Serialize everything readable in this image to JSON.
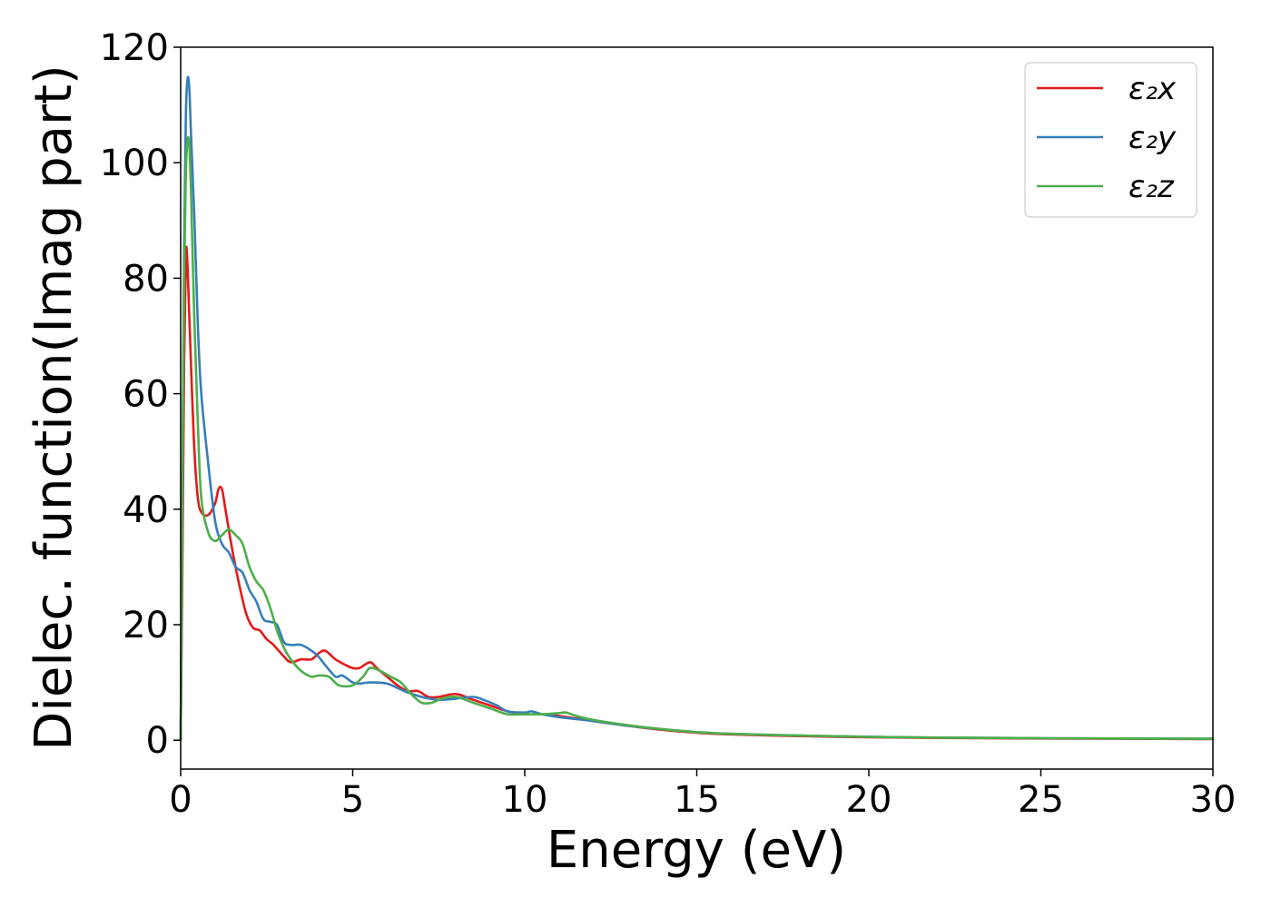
{
  "chart_data": {
    "type": "line",
    "title": "",
    "xlabel": "Energy (eV)",
    "ylabel": "Dielec. function(Imag part)",
    "xlim": [
      0,
      30
    ],
    "ylim": [
      -5,
      120
    ],
    "xticks": [
      0,
      5,
      10,
      15,
      20,
      25,
      30
    ],
    "yticks": [
      0,
      20,
      40,
      60,
      80,
      100,
      120
    ],
    "grid": false,
    "legend_position": "top-right",
    "series": [
      {
        "name": "ε₂x",
        "color": "#e41a1c",
        "points": [
          [
            0,
            0
          ],
          [
            0.05,
            30
          ],
          [
            0.1,
            65
          ],
          [
            0.15,
            84
          ],
          [
            0.2,
            82
          ],
          [
            0.3,
            65
          ],
          [
            0.4,
            50
          ],
          [
            0.5,
            42
          ],
          [
            0.6,
            39.5
          ],
          [
            0.8,
            39
          ],
          [
            1.0,
            41
          ],
          [
            1.1,
            43.5
          ],
          [
            1.2,
            43.5
          ],
          [
            1.3,
            40
          ],
          [
            1.5,
            33
          ],
          [
            1.7,
            27
          ],
          [
            1.9,
            22
          ],
          [
            2.1,
            19.5
          ],
          [
            2.3,
            19
          ],
          [
            2.5,
            17.5
          ],
          [
            2.7,
            16.5
          ],
          [
            3.0,
            14.5
          ],
          [
            3.2,
            13.5
          ],
          [
            3.5,
            14
          ],
          [
            3.8,
            14
          ],
          [
            4.0,
            15
          ],
          [
            4.2,
            15.5
          ],
          [
            4.5,
            14
          ],
          [
            4.8,
            13
          ],
          [
            5.0,
            12.5
          ],
          [
            5.2,
            12.5
          ],
          [
            5.5,
            13.5
          ],
          [
            5.7,
            12.5
          ],
          [
            6.0,
            11
          ],
          [
            6.3,
            9.5
          ],
          [
            6.6,
            8.5
          ],
          [
            6.9,
            8.5
          ],
          [
            7.2,
            7.5
          ],
          [
            7.5,
            7.5
          ],
          [
            8.0,
            8
          ],
          [
            8.5,
            7
          ],
          [
            9.0,
            6
          ],
          [
            9.5,
            5
          ],
          [
            10,
            4.5
          ],
          [
            10.5,
            4.5
          ],
          [
            11,
            4.2
          ],
          [
            12,
            3.3
          ],
          [
            13,
            2.5
          ],
          [
            14,
            1.8
          ],
          [
            15,
            1.3
          ],
          [
            16,
            1.0
          ],
          [
            18,
            0.7
          ],
          [
            20,
            0.5
          ],
          [
            22,
            0.4
          ],
          [
            25,
            0.3
          ],
          [
            30,
            0.2
          ]
        ]
      },
      {
        "name": "ε₂y",
        "color": "#377eb8",
        "points": [
          [
            0,
            0
          ],
          [
            0.05,
            40
          ],
          [
            0.1,
            85
          ],
          [
            0.15,
            108
          ],
          [
            0.2,
            114.5
          ],
          [
            0.25,
            113
          ],
          [
            0.3,
            105
          ],
          [
            0.4,
            90
          ],
          [
            0.5,
            72
          ],
          [
            0.6,
            60
          ],
          [
            0.8,
            48
          ],
          [
            1.0,
            38
          ],
          [
            1.2,
            34
          ],
          [
            1.4,
            32.5
          ],
          [
            1.6,
            30
          ],
          [
            1.8,
            29
          ],
          [
            2.0,
            26
          ],
          [
            2.2,
            24
          ],
          [
            2.4,
            21
          ],
          [
            2.6,
            20.5
          ],
          [
            2.8,
            20
          ],
          [
            3.0,
            17
          ],
          [
            3.2,
            16.5
          ],
          [
            3.5,
            16.5
          ],
          [
            3.8,
            15.5
          ],
          [
            4.0,
            14.5
          ],
          [
            4.2,
            13
          ],
          [
            4.5,
            11
          ],
          [
            4.7,
            11.2
          ],
          [
            5.0,
            10
          ],
          [
            5.2,
            9.8
          ],
          [
            5.5,
            10
          ],
          [
            6.0,
            9.8
          ],
          [
            6.5,
            8.5
          ],
          [
            7.0,
            7.5
          ],
          [
            7.5,
            7
          ],
          [
            8.0,
            7.2
          ],
          [
            8.5,
            7.5
          ],
          [
            8.8,
            7
          ],
          [
            9.2,
            6
          ],
          [
            9.5,
            5
          ],
          [
            10,
            4.8
          ],
          [
            10.2,
            5
          ],
          [
            10.5,
            4.5
          ],
          [
            11,
            4
          ],
          [
            12,
            3.3
          ],
          [
            13,
            2.5
          ],
          [
            14,
            1.9
          ],
          [
            15,
            1.4
          ],
          [
            16,
            1.1
          ],
          [
            18,
            0.8
          ],
          [
            20,
            0.6
          ],
          [
            22,
            0.45
          ],
          [
            25,
            0.35
          ],
          [
            30,
            0.25
          ]
        ]
      },
      {
        "name": "ε₂z",
        "color": "#4daf4a",
        "points": [
          [
            0,
            0
          ],
          [
            0.05,
            45
          ],
          [
            0.1,
            80
          ],
          [
            0.15,
            98
          ],
          [
            0.2,
            104
          ],
          [
            0.25,
            103
          ],
          [
            0.3,
            95
          ],
          [
            0.4,
            72
          ],
          [
            0.5,
            55
          ],
          [
            0.6,
            42
          ],
          [
            0.8,
            36
          ],
          [
            1.0,
            34.5
          ],
          [
            1.2,
            35.5
          ],
          [
            1.4,
            36.5
          ],
          [
            1.6,
            35.5
          ],
          [
            1.8,
            34
          ],
          [
            2.0,
            30
          ],
          [
            2.2,
            27.5
          ],
          [
            2.4,
            26
          ],
          [
            2.6,
            23
          ],
          [
            2.8,
            19
          ],
          [
            3.0,
            16
          ],
          [
            3.2,
            14
          ],
          [
            3.5,
            12
          ],
          [
            3.8,
            11
          ],
          [
            4.0,
            11.2
          ],
          [
            4.3,
            11
          ],
          [
            4.6,
            9.5
          ],
          [
            5.0,
            9.5
          ],
          [
            5.3,
            11
          ],
          [
            5.5,
            12.5
          ],
          [
            5.8,
            12
          ],
          [
            6.1,
            11
          ],
          [
            6.4,
            10
          ],
          [
            6.7,
            8
          ],
          [
            7.0,
            6.5
          ],
          [
            7.3,
            6.5
          ],
          [
            7.6,
            7.2
          ],
          [
            8.0,
            7.5
          ],
          [
            8.5,
            6.5
          ],
          [
            9.0,
            5.5
          ],
          [
            9.5,
            4.5
          ],
          [
            10,
            4.5
          ],
          [
            10.5,
            4.5
          ],
          [
            11,
            4.7
          ],
          [
            11.2,
            4.8
          ],
          [
            11.5,
            4.2
          ],
          [
            12,
            3.5
          ],
          [
            13,
            2.6
          ],
          [
            14,
            1.9
          ],
          [
            15,
            1.4
          ],
          [
            16,
            1.1
          ],
          [
            18,
            0.8
          ],
          [
            20,
            0.6
          ],
          [
            22,
            0.45
          ],
          [
            25,
            0.35
          ],
          [
            30,
            0.25
          ]
        ]
      }
    ]
  }
}
